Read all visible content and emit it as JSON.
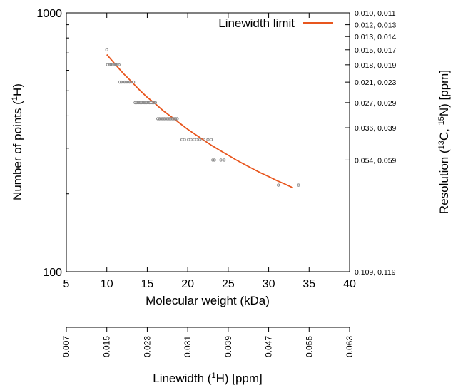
{
  "chart_data": {
    "type": "scatter",
    "legend": {
      "label": "Linewidth limit",
      "placement": "top-right"
    },
    "colors": {
      "curve": "#e8561e",
      "points": "#8a8a8a",
      "axis": "#000000"
    },
    "x_axis": {
      "label": "Molecular weight (kDa)",
      "range": [
        5,
        40
      ],
      "ticks": [
        "5",
        "10",
        "15",
        "20",
        "25",
        "30",
        "35",
        "40"
      ]
    },
    "y_axis_left": {
      "label_prefix": "Number of points (",
      "label_sup": "1",
      "label_suffix": "H)",
      "scale": "log",
      "range": [
        100,
        1000
      ],
      "ticks": [
        "100",
        "1000"
      ]
    },
    "y_axis_right": {
      "label_prefix": "Resolution (",
      "label_sup1": "13",
      "label_mid": "C, ",
      "label_sup2": "15",
      "label_suffix": "N) [ppm]",
      "ticks": [
        {
          "y": 1000,
          "label": "0.010, 0.011"
        },
        {
          "y": 900,
          "label": "0.012, 0.013"
        },
        {
          "y": 810,
          "label": "0.013, 0.014"
        },
        {
          "y": 720,
          "label": "0.015, 0.017"
        },
        {
          "y": 630,
          "label": "0.018, 0.019"
        },
        {
          "y": 540,
          "label": "0.021, 0.023"
        },
        {
          "y": 450,
          "label": "0.027, 0.029"
        },
        {
          "y": 360,
          "label": "0.036, 0.039"
        },
        {
          "y": 270,
          "label": "0.054, 0.059"
        },
        {
          "y": 100,
          "label": "0.109, 0.119"
        }
      ]
    },
    "x_axis_secondary": {
      "label_prefix": "Linewidth (",
      "label_sup": "1",
      "label_suffix": "H) [ppm]",
      "ticks": [
        "0.007",
        "0.015",
        "0.023",
        "0.031",
        "0.039",
        "0.047",
        "0.055",
        "0.063"
      ]
    },
    "series": [
      {
        "name": "Linewidth limit",
        "kind": "line",
        "x": [
          10,
          11,
          12,
          13,
          14,
          15,
          16,
          17,
          18,
          19,
          20,
          21,
          22,
          23,
          24,
          25,
          26,
          27,
          28,
          29,
          30,
          31,
          32,
          33
        ],
        "y": [
          690,
          635,
          585,
          545,
          505,
          472,
          445,
          418,
          396,
          375,
          355,
          338,
          322,
          307,
          294,
          282,
          270,
          260,
          250,
          241,
          233,
          225,
          218,
          211
        ]
      },
      {
        "name": "",
        "kind": "points",
        "x": [
          10,
          10.1,
          10.3,
          10.5,
          10.7,
          10.9,
          11.1,
          11.3,
          11.5,
          11.6,
          11.8,
          12.0,
          12.2,
          12.4,
          12.6,
          12.8,
          13.0,
          13.3,
          13.5,
          13.7,
          13.9,
          14.1,
          14.3,
          14.5,
          14.7,
          14.9,
          15.1,
          15.3,
          15.6,
          15.8,
          16.0,
          16.3,
          16.5,
          16.7,
          16.9,
          17.1,
          17.3,
          17.5,
          17.7,
          17.9,
          18.1,
          18.3,
          18.5,
          18.7,
          19.3,
          19.6,
          20.1,
          20.4,
          20.8,
          21.1,
          21.5,
          22.0,
          22.5,
          22.9,
          23.1,
          23.3,
          24.1,
          24.5,
          31.2,
          33.7
        ],
        "y": [
          720,
          630,
          630,
          630,
          630,
          630,
          630,
          630,
          630,
          540,
          540,
          540,
          540,
          540,
          540,
          540,
          540,
          540,
          450,
          450,
          450,
          450,
          450,
          450,
          450,
          450,
          450,
          450,
          450,
          450,
          450,
          390,
          390,
          390,
          390,
          390,
          390,
          390,
          390,
          390,
          390,
          390,
          390,
          390,
          324,
          324,
          324,
          324,
          324,
          324,
          324,
          324,
          324,
          324,
          270,
          270,
          270,
          270,
          216,
          216
        ]
      }
    ]
  }
}
